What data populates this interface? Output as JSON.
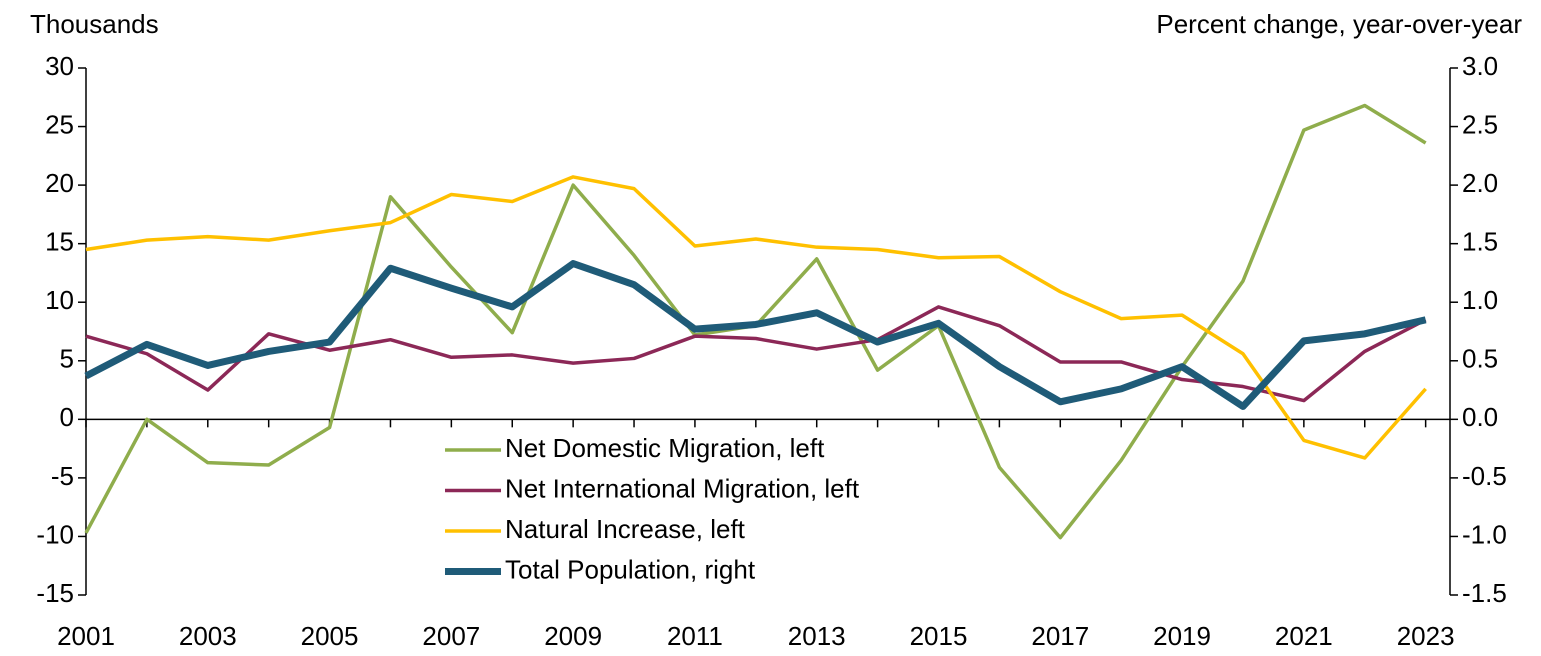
{
  "chart_data": {
    "type": "line",
    "y_label": "Thousands",
    "y2_label": "Percent change, year-over-year",
    "x": [
      2001,
      2002,
      2003,
      2004,
      2005,
      2006,
      2007,
      2008,
      2009,
      2010,
      2011,
      2012,
      2013,
      2014,
      2015,
      2016,
      2017,
      2018,
      2019,
      2020,
      2021,
      2022,
      2023
    ],
    "xlim": [
      2001,
      2023.4
    ],
    "xticks": [
      2001,
      2003,
      2005,
      2007,
      2009,
      2011,
      2013,
      2015,
      2017,
      2019,
      2021,
      2023
    ],
    "ylim": [
      -15,
      30
    ],
    "yticks": [
      -15,
      -10,
      -5,
      0,
      5,
      10,
      15,
      20,
      25,
      30
    ],
    "y2lim": [
      -1.5,
      3.0
    ],
    "y2ticks": [
      {
        "value": -1.5,
        "label": "-1.5"
      },
      {
        "value": -1.0,
        "label": "-1.0"
      },
      {
        "value": -0.5,
        "label": "-0.5"
      },
      {
        "value": 0,
        "label": "0.0"
      },
      {
        "value": 0.5,
        "label": "0.5"
      },
      {
        "value": 1.0,
        "label": "1.0"
      },
      {
        "value": 1.5,
        "label": "1.5"
      },
      {
        "value": 2.0,
        "label": "2.0"
      },
      {
        "value": 2.5,
        "label": "2.5"
      },
      {
        "value": 3.0,
        "label": "3.0"
      }
    ],
    "legend": "center",
    "series": [
      {
        "name": "Net Domestic Migration, left",
        "color": "#8fad4c",
        "width": 3.5,
        "values": [
          -9.7,
          0,
          -3.7,
          -3.9,
          -0.7,
          19,
          13,
          7.4,
          20,
          14,
          7.2,
          8,
          13.7,
          4.2,
          8,
          -4.1,
          -10.1,
          -3.5,
          4.5,
          11.8,
          24.7,
          26.8,
          23.6
        ]
      },
      {
        "name": "Net International Migration, left",
        "color": "#8c2857",
        "width": 3.5,
        "values": [
          7.1,
          5.6,
          2.5,
          7.3,
          5.9,
          6.8,
          5.3,
          5.5,
          4.8,
          5.2,
          7.1,
          6.9,
          6.0,
          6.8,
          9.6,
          8.0,
          4.9,
          4.9,
          3.4,
          2.8,
          1.6,
          5.8,
          8.5
        ]
      },
      {
        "name": "Natural Increase, left",
        "color": "#ffc000",
        "width": 3.5,
        "values": [
          14.5,
          15.3,
          15.6,
          15.3,
          16.1,
          16.8,
          19.2,
          18.6,
          20.7,
          19.7,
          14.8,
          15.4,
          14.7,
          14.5,
          13.8,
          13.9,
          10.9,
          8.6,
          8.9,
          5.6,
          -1.8,
          -3.3,
          2.6
        ]
      },
      {
        "name": "Total Population, right",
        "color": "#1f5b78",
        "width": 7,
        "axis": "y2",
        "values": [
          0.37,
          0.64,
          0.46,
          0.58,
          0.66,
          1.29,
          1.12,
          0.96,
          1.33,
          1.15,
          0.77,
          0.81,
          0.91,
          0.66,
          0.82,
          0.45,
          0.15,
          0.26,
          0.45,
          0.11,
          0.67,
          0.73,
          0.85
        ]
      }
    ]
  }
}
